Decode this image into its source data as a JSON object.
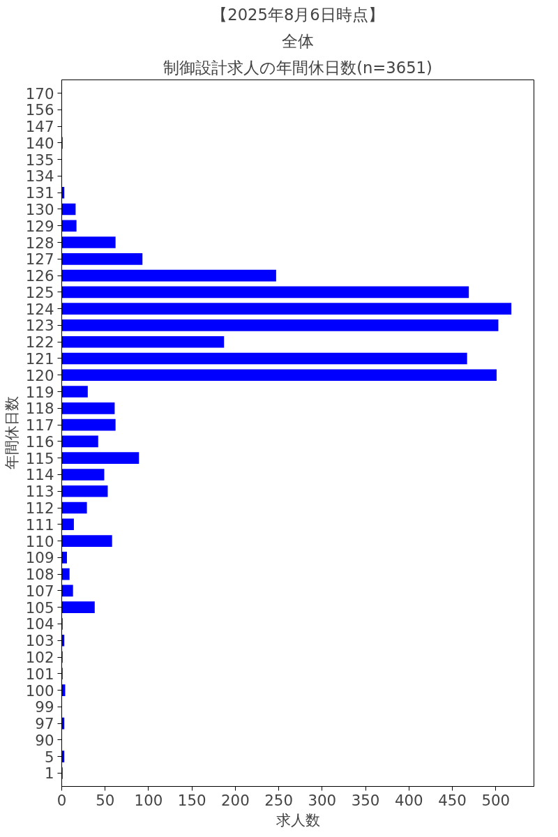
{
  "chart_data": {
    "type": "bar",
    "orientation": "horizontal",
    "title": "制御設計求人の年間休日数(n=3651)",
    "subtitle": "全体",
    "annotations": [
      "【2025年8月6日時点】"
    ],
    "xlabel": "求人数",
    "ylabel": "年間休日数",
    "categories": [
      "170",
      "156",
      "147",
      "140",
      "135",
      "134",
      "131",
      "130",
      "129",
      "128",
      "127",
      "126",
      "125",
      "124",
      "123",
      "122",
      "121",
      "120",
      "119",
      "118",
      "117",
      "116",
      "115",
      "114",
      "113",
      "112",
      "111",
      "110",
      "109",
      "108",
      "107",
      "105",
      "104",
      "103",
      "102",
      "101",
      "100",
      "99",
      "97",
      "90",
      "5",
      "1"
    ],
    "values": [
      0,
      0,
      0,
      1,
      0,
      0,
      3,
      16,
      17,
      62,
      93,
      247,
      469,
      518,
      503,
      187,
      467,
      501,
      30,
      61,
      62,
      42,
      89,
      49,
      53,
      29,
      14,
      58,
      6,
      9,
      13,
      38,
      1,
      3,
      1,
      1,
      4,
      0,
      3,
      0,
      3,
      1
    ],
    "color": "#0000ff",
    "xlim": [
      0,
      544
    ],
    "xticks": [
      0,
      50,
      100,
      150,
      200,
      250,
      300,
      350,
      400,
      450,
      500
    ],
    "grid": false
  }
}
